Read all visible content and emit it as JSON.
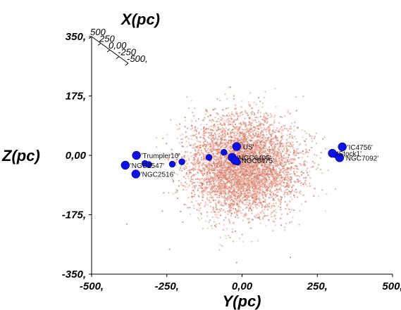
{
  "chart_data": {
    "type": "scatter",
    "title": "",
    "xlabel": "Y(pc)",
    "ylabel": "Z(pc)",
    "zlabel": "X(pc)",
    "xlim": [
      -500,
      500
    ],
    "ylim": [
      -350,
      350
    ],
    "x_ticks": [
      "-500,",
      "-250,",
      "0,00",
      "250,",
      "500,"
    ],
    "y_ticks": [
      "350,",
      "175,",
      "0,00",
      "-175,",
      "-350,"
    ],
    "z_ticks": [
      "500",
      "250",
      "0,00",
      "-250",
      "-500,"
    ],
    "colors": {
      "field": "#e8a090",
      "cluster": "#1010e0",
      "axis": "#000000"
    },
    "field_stars": {
      "count": 5200,
      "center": [
        0,
        -30
      ],
      "spread": [
        90,
        70
      ]
    },
    "series": [
      {
        "marker": "cluster",
        "points": [
          {
            "label": "'IC4756'",
            "y": 333,
            "z": 25
          },
          {
            "label": "'Stock1'",
            "y": 300,
            "z": 6
          },
          {
            "label": "'NGC7092'",
            "y": 324,
            "z": -7
          },
          {
            "label": "'US'",
            "y": -18,
            "z": 26
          },
          {
            "label": "'NGC6405'",
            "y": -33,
            "z": -6
          },
          {
            "label": "'NGC6475'",
            "y": -23,
            "z": -15
          },
          {
            "label": "'Trumpler10'",
            "y": -351,
            "z": 0
          },
          {
            "label": "'NGC2547'",
            "y": -388,
            "z": -29
          },
          {
            "label": "'NGC2516'",
            "y": -353,
            "z": -55
          }
        ]
      },
      {
        "marker": "cluster",
        "points": [
          {
            "y": -388,
            "z": -32
          },
          {
            "y": -323,
            "z": -24
          },
          {
            "y": -310,
            "z": -27
          },
          {
            "y": -232,
            "z": -26
          },
          {
            "y": -200,
            "z": -19
          },
          {
            "y": -110,
            "z": -6
          },
          {
            "y": -60,
            "z": 9
          },
          {
            "y": -30,
            "z": -8
          },
          {
            "y": -15,
            "z": -20
          },
          {
            "y": 310,
            "z": 2
          }
        ]
      }
    ]
  }
}
